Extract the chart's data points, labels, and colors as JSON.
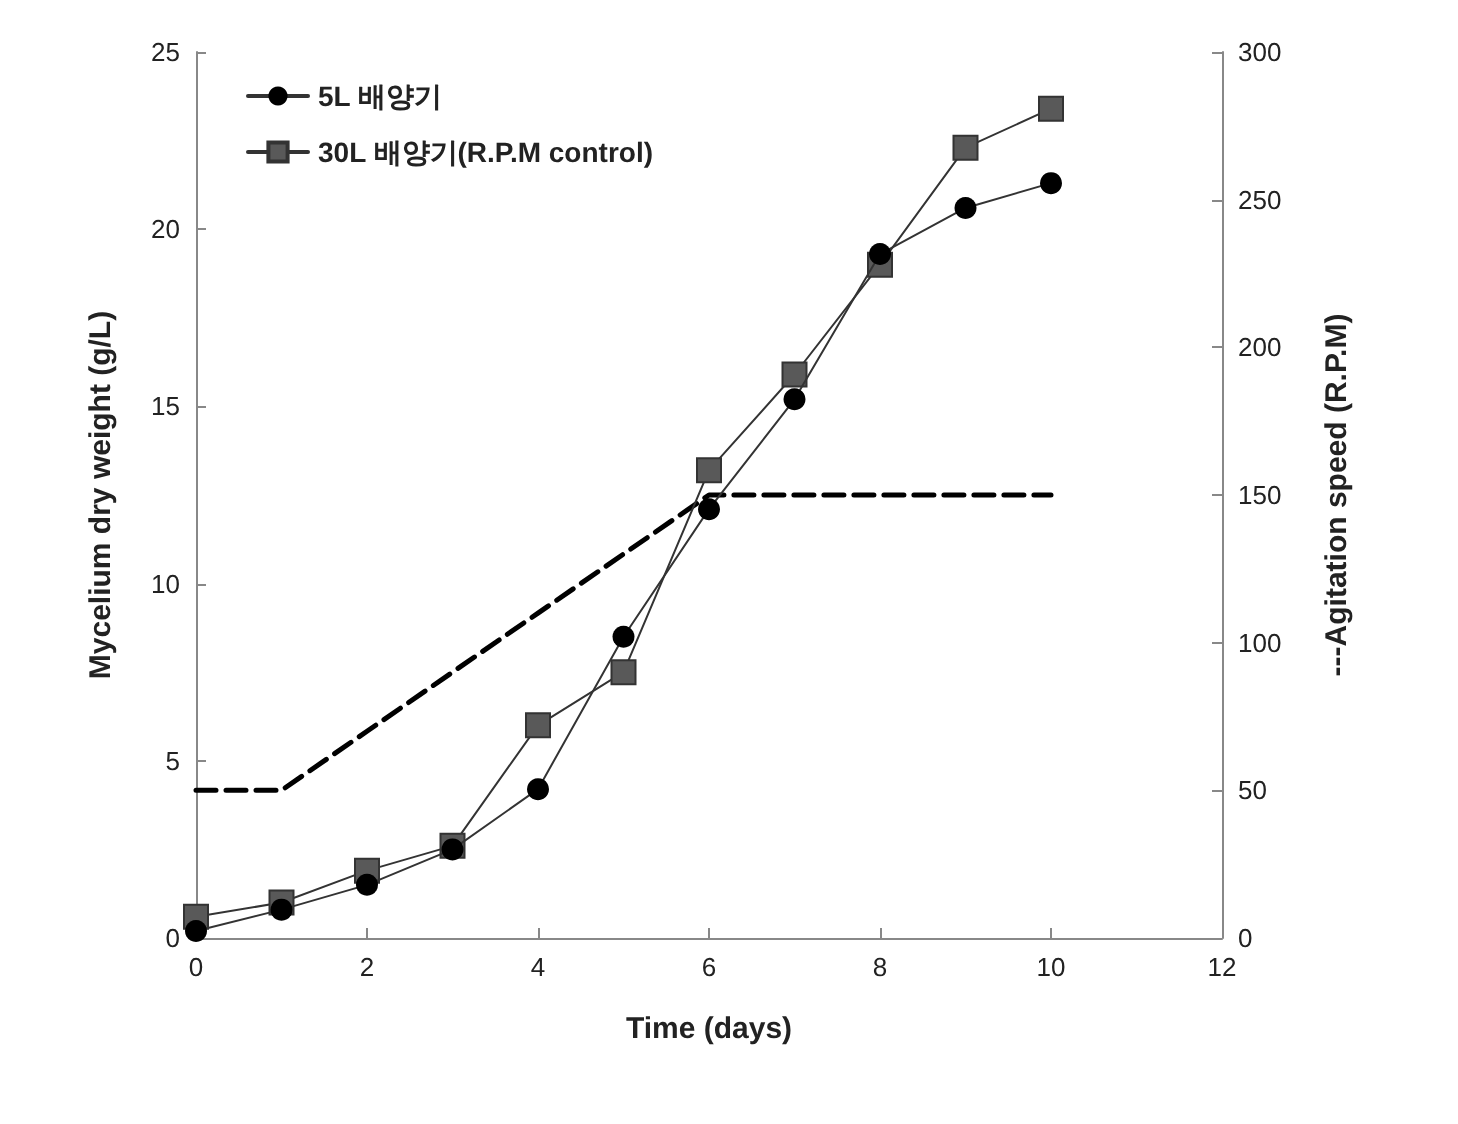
{
  "chart_data": {
    "type": "line",
    "xlabel": "Time (days)",
    "ylabel": "Mycelium dry weight (g/L)",
    "y2label": "---Agitation speed (R.P.M)",
    "x": [
      0,
      1,
      2,
      3,
      4,
      5,
      6,
      7,
      8,
      9,
      10
    ],
    "series": [
      {
        "name": "5L 배양기",
        "color": "#000000",
        "marker": "circle",
        "values": [
          0.2,
          0.8,
          1.5,
          2.5,
          4.2,
          8.5,
          12.1,
          15.2,
          19.3,
          20.6,
          21.3
        ]
      },
      {
        "name": "30L 배양기(R.P.M control)",
        "color": "#595959",
        "marker": "square",
        "values": [
          0.6,
          1.0,
          1.9,
          2.6,
          6.0,
          7.5,
          13.2,
          15.9,
          19.0,
          22.3,
          23.4
        ]
      },
      {
        "color": "#000000",
        "marker": "none",
        "line_style": "dashed",
        "axis": "y2",
        "values": [
          50,
          50,
          70,
          90,
          110,
          130,
          150,
          150,
          150,
          150,
          150
        ]
      }
    ],
    "xlim": [
      0,
      12
    ],
    "xticks": [
      0,
      2,
      4,
      6,
      8,
      10,
      12
    ],
    "ylim": [
      0,
      25
    ],
    "yticks": [
      0,
      5,
      10,
      15,
      20,
      25
    ],
    "y2lim": [
      0,
      300
    ],
    "y2ticks": [
      0,
      50,
      100,
      150,
      200,
      250,
      300
    ],
    "grid": false,
    "legend": "top left"
  }
}
